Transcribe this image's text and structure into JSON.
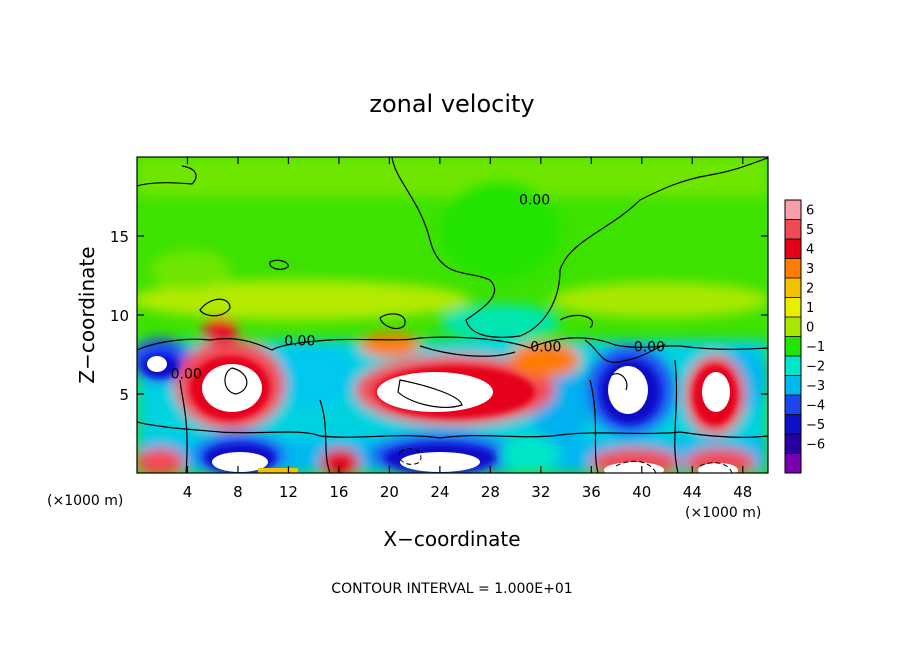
{
  "chart_data": {
    "type": "heatmap",
    "title": "zonal velocity",
    "xlabel": "X−coordinate",
    "ylabel": "Z−coordinate",
    "x_unit_left": "(×1000 m)",
    "x_unit_right": "(×1000 m)",
    "xlim": [
      0,
      50
    ],
    "ylim": [
      0,
      20
    ],
    "x_ticks": [
      4,
      8,
      12,
      16,
      20,
      24,
      28,
      32,
      36,
      40,
      44,
      48
    ],
    "x_tick_labels": [
      "4",
      "8",
      "12",
      "16",
      "20",
      "24",
      "28",
      "32",
      "36",
      "40",
      "44",
      "48"
    ],
    "y_ticks": [
      5,
      10,
      15
    ],
    "y_tick_labels": [
      "5",
      "10",
      "15"
    ],
    "colorbar": {
      "levels": [
        6,
        5,
        4,
        3,
        2,
        1,
        0,
        -1,
        -2,
        -3,
        -4,
        -5,
        -6
      ],
      "labels": [
        "6",
        "5",
        "4",
        "3",
        "2",
        "1",
        "0",
        "−1",
        "−2",
        "−3",
        "−4",
        "−5",
        "−6"
      ],
      "colors": [
        "#f5a0a8",
        "#f24a55",
        "#e5001a",
        "#ff7c00",
        "#f2c200",
        "#e8ee00",
        "#a8e800",
        "#22e400",
        "#00e6c8",
        "#00b8f0",
        "#1a46f0",
        "#0e10c8",
        "#2a00a0",
        "#7a00b0"
      ]
    },
    "contour_labels": [
      {
        "text": "0.00",
        "x": 31.5,
        "y": 17.3
      },
      {
        "text": "0.00",
        "x": 12.9,
        "y": 8.4
      },
      {
        "text": "0.00",
        "x": 32.4,
        "y": 8.0
      },
      {
        "text": "0.00",
        "x": 40.6,
        "y": 8.0
      },
      {
        "text": "0.00",
        "x": 3.9,
        "y": 6.3
      }
    ],
    "footer": "CONTOUR INTERVAL = 1.000E+01"
  }
}
